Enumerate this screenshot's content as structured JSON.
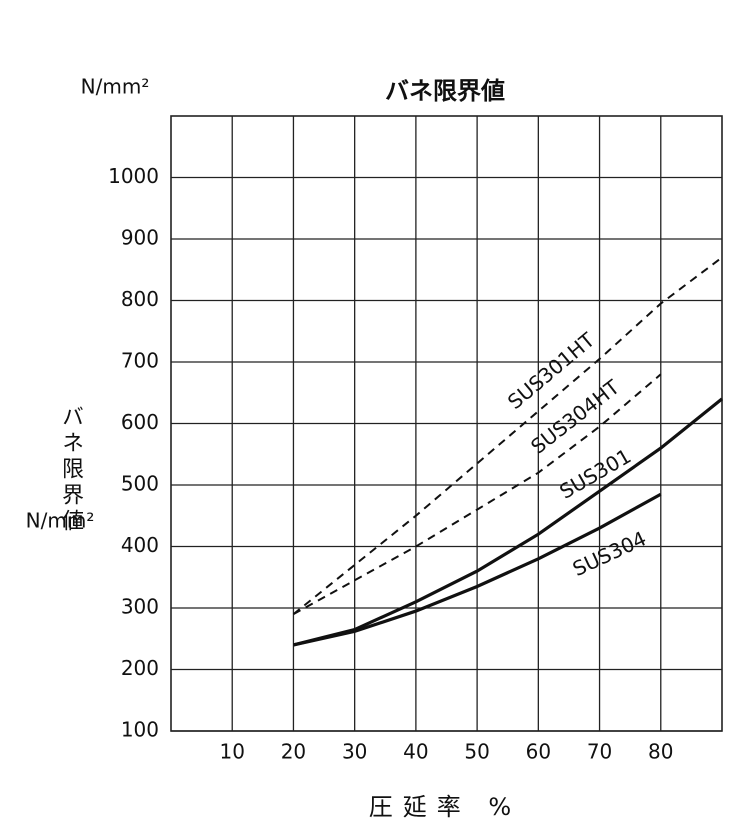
{
  "chart_data": {
    "type": "line",
    "title": "バネ限界値",
    "y_unit": "N/mm²",
    "y_label": "バネ限界値",
    "y_label_unit": "N/mm²",
    "x_label": "圧延率 %",
    "x": [
      20,
      30,
      40,
      50,
      60,
      70,
      80,
      90
    ],
    "xlim": [
      0,
      90
    ],
    "xticks": [
      10,
      20,
      30,
      40,
      50,
      60,
      70,
      80
    ],
    "ylim": [
      100,
      1100
    ],
    "yticks": [
      100,
      200,
      300,
      400,
      500,
      600,
      700,
      800,
      900,
      1000
    ],
    "grid": true,
    "series": [
      {
        "name": "SUS301HT",
        "color": "#111111",
        "style": "dashed",
        "values": [
          290,
          370,
          450,
          535,
          620,
          705,
          795,
          870
        ]
      },
      {
        "name": "SUS304HT",
        "color": "#111111",
        "style": "dashed",
        "values": [
          290,
          345,
          400,
          460,
          520,
          595,
          680,
          null
        ]
      },
      {
        "name": "SUS301",
        "color": "#111111",
        "style": "solid",
        "values": [
          240,
          265,
          310,
          360,
          420,
          490,
          560,
          640
        ]
      },
      {
        "name": "SUS304",
        "color": "#111111",
        "style": "solid",
        "values": [
          240,
          262,
          295,
          335,
          380,
          430,
          485,
          null
        ]
      }
    ]
  }
}
